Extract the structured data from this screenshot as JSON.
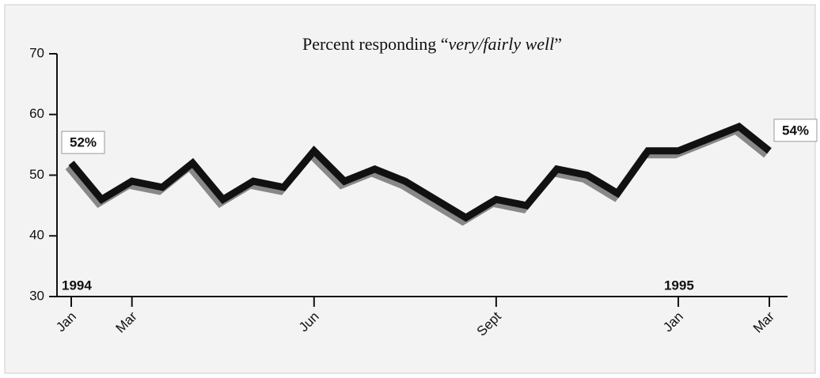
{
  "chart_data": {
    "type": "line",
    "title_parts": [
      "Percent responding “",
      "very/fairly well",
      "”"
    ],
    "categories": [
      "Jan",
      null,
      "Mar",
      null,
      null,
      null,
      null,
      null,
      "Jun",
      null,
      null,
      null,
      null,
      null,
      "Sept",
      null,
      null,
      null,
      null,
      null,
      "Jan",
      null,
      null,
      "Mar"
    ],
    "series": [
      {
        "color": "#111111",
        "values": [
          52,
          46,
          49,
          48,
          52,
          46,
          49,
          48,
          54,
          49,
          51,
          49,
          46,
          43,
          46,
          45,
          51,
          50,
          47,
          54,
          54,
          56,
          58,
          54
        ],
        "value_labels": [
          "52%",
          null,
          null,
          null,
          null,
          null,
          null,
          null,
          null,
          null,
          null,
          null,
          null,
          null,
          null,
          null,
          null,
          null,
          null,
          null,
          null,
          null,
          null,
          "54%"
        ]
      }
    ],
    "annotations": [
      {
        "text": "1994",
        "at": 0
      },
      {
        "text": "1995",
        "at": 20
      }
    ],
    "ylim": [
      30,
      70
    ],
    "yticks": [
      30,
      40,
      50,
      60,
      70
    ]
  }
}
